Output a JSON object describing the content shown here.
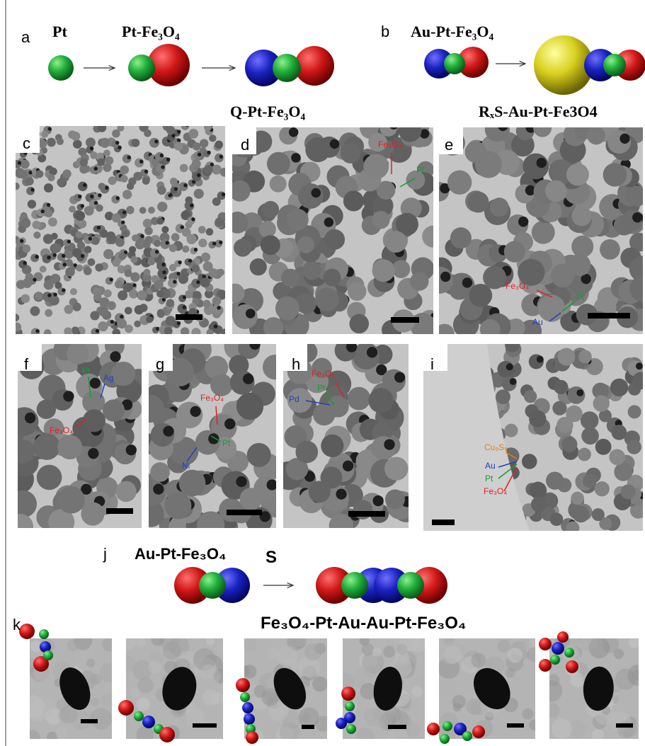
{
  "panel_labels": [
    "a",
    "b",
    "c",
    "d",
    "e",
    "f",
    "g",
    "h",
    "i",
    "j",
    "k"
  ],
  "scheme_a": {
    "labels": [
      "Pt",
      "Pt-Fe₃O₄",
      "Q-Pt-Fe₃O₄"
    ]
  },
  "scheme_b": {
    "labels": [
      "Au-Pt-Fe₃O₄",
      "RₓS-Au-Pt-Fe3O4"
    ]
  },
  "annotations": {
    "d": [
      "Fe₃O₄",
      "Pt"
    ],
    "e": [
      "Fe₃O₄",
      "Pt",
      "Au"
    ],
    "f": [
      "Pt",
      "Ag",
      "Fe₃O₄"
    ],
    "g": [
      "Fe₃O₄",
      "Pt",
      "Ni"
    ],
    "h": [
      "Fe₃O₄",
      "Pt",
      "Pd"
    ],
    "i": [
      "Cu₉S₅",
      "Au",
      "Pt",
      "Fe₃O₄"
    ]
  },
  "scheme_j": {
    "labels": [
      "Au-Pt-Fe₃O₄",
      "S",
      "Fe₃O₄-Pt-Au-Au-Pt-Fe₃O₄"
    ]
  }
}
